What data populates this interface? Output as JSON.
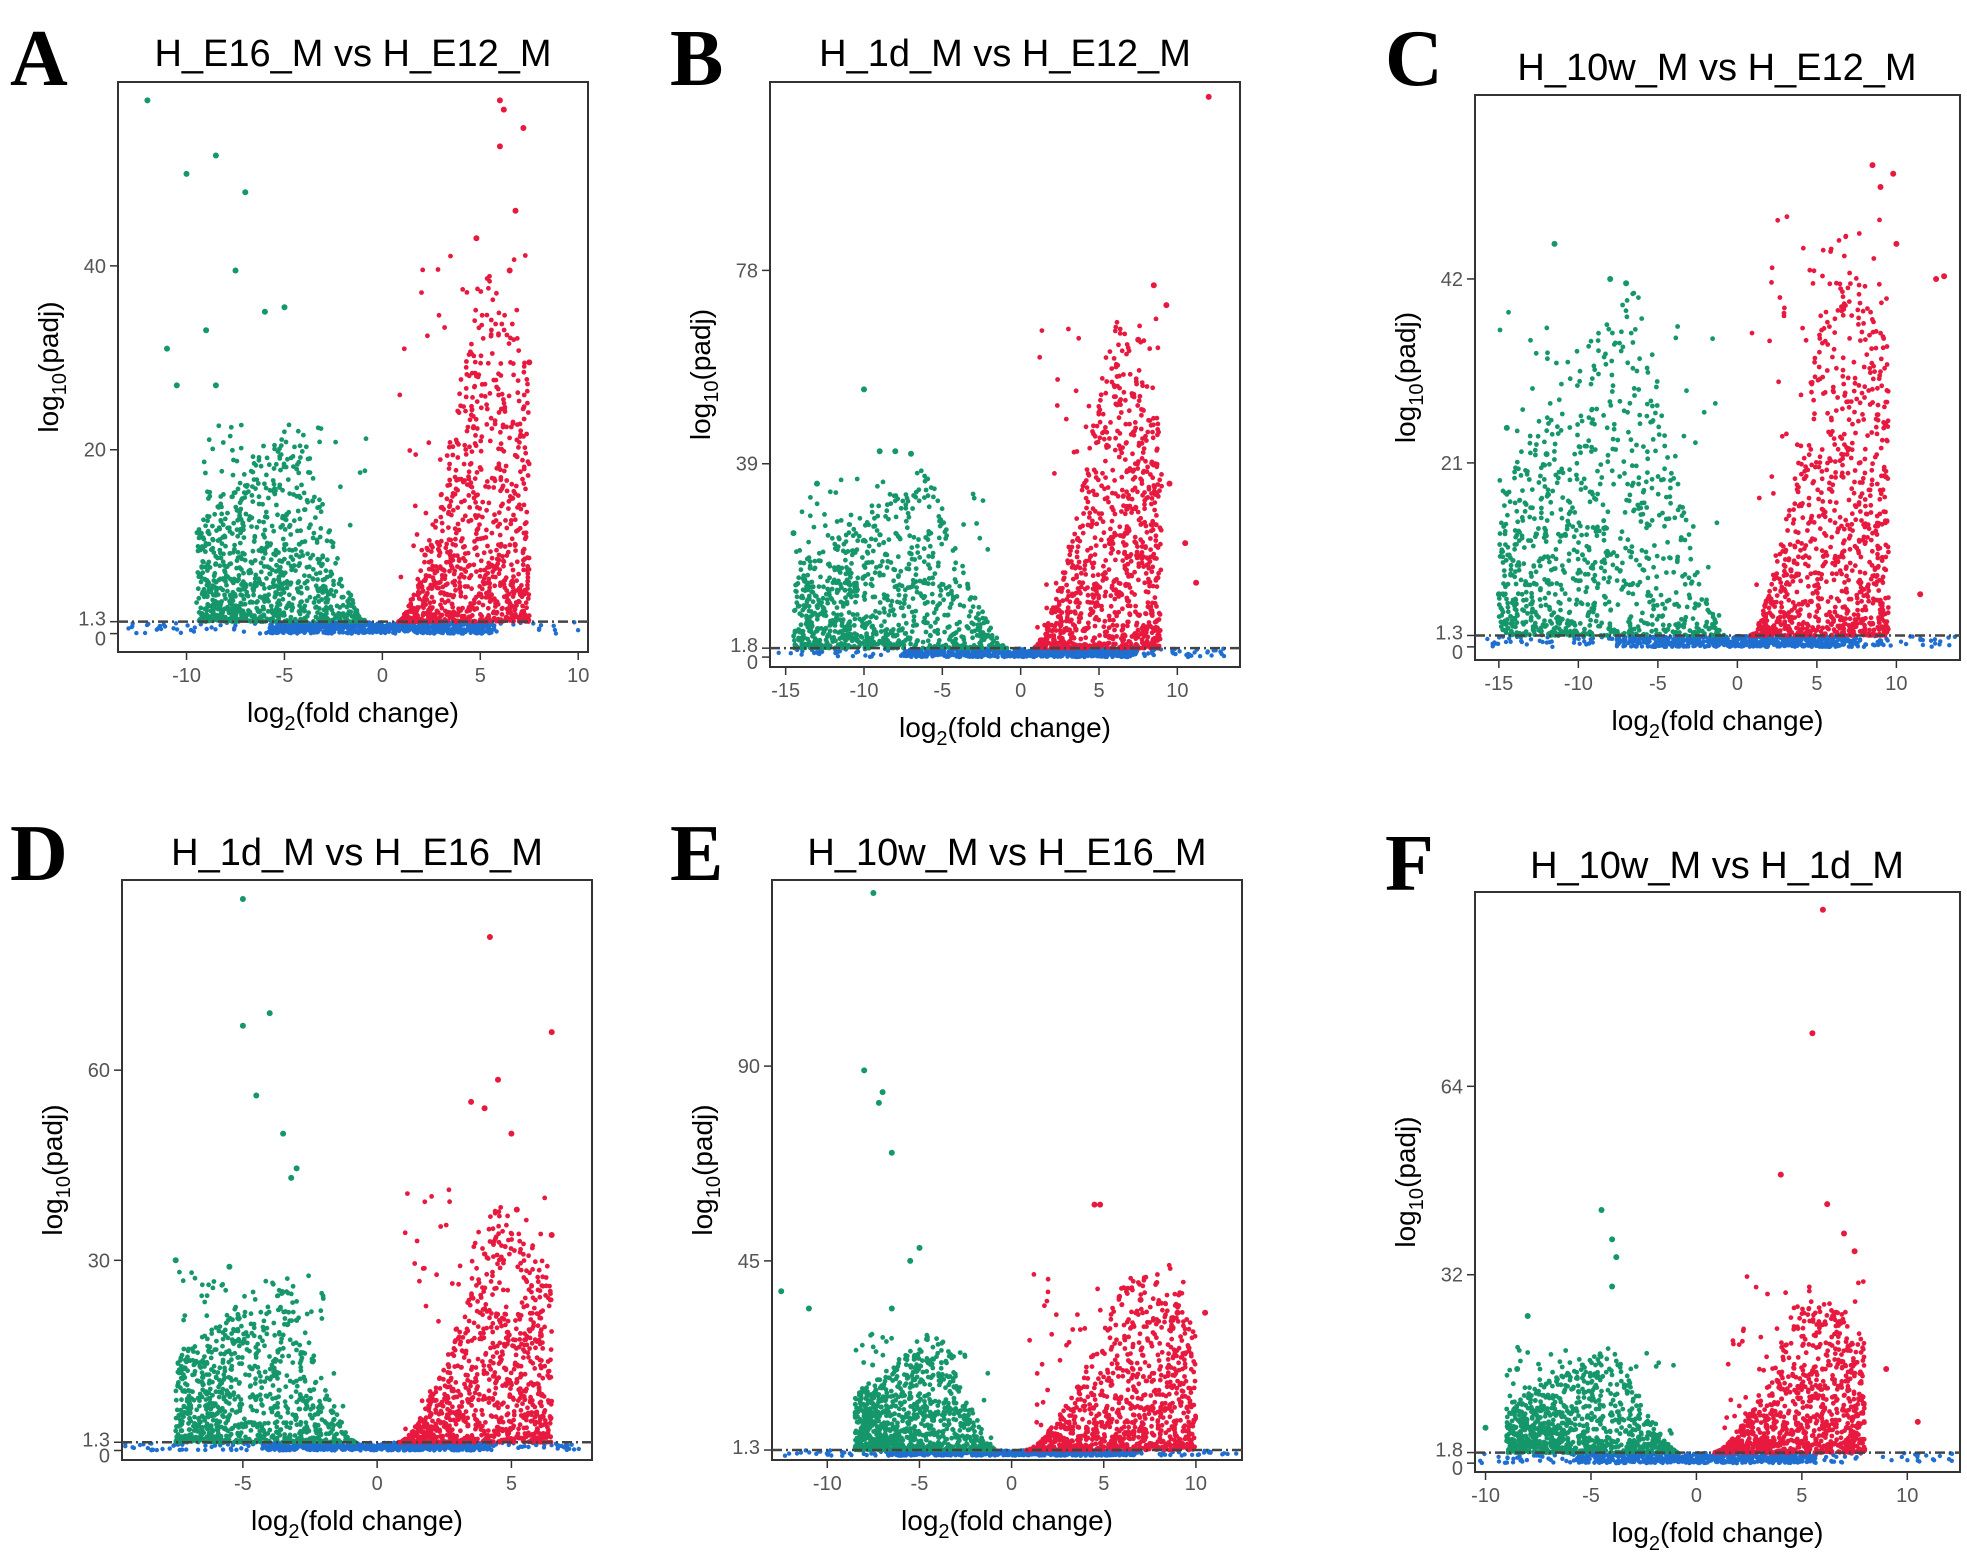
{
  "figure": {
    "colors": {
      "down": "#15966b",
      "up": "#e8193f",
      "ns": "#1f6fd1",
      "threshold": "#444444",
      "frame": "#333333"
    }
  },
  "chart_data": [
    {
      "type": "scatter",
      "letter": "A",
      "title": "H_E16_M vs H_E12_M",
      "xlabel": "log2(fold change)",
      "ylabel": "log10(padj)",
      "xlim": [
        -13.5,
        10.5
      ],
      "ylim": [
        -2,
        60
      ],
      "xticks": [
        -10,
        -5,
        0,
        5,
        10
      ],
      "yticks": [
        0,
        1.3,
        20,
        40
      ],
      "threshold": 1.3,
      "down_x_extent": -9.5,
      "down_peak": 24,
      "up_x_extent": 7.5,
      "up_peak": 40,
      "ns_x_range": [
        -13,
        10.4
      ],
      "outliers_down": [
        [
          -12,
          58
        ],
        [
          -8.5,
          52
        ],
        [
          -10,
          50
        ],
        [
          -7,
          48
        ],
        [
          -7.5,
          39.5
        ],
        [
          -6,
          35
        ],
        [
          -5,
          35.5
        ],
        [
          -9,
          33
        ],
        [
          -11,
          31
        ],
        [
          -8.5,
          27
        ],
        [
          -10.5,
          27
        ]
      ],
      "outliers_up": [
        [
          6,
          58
        ],
        [
          6.2,
          57
        ],
        [
          7.2,
          55
        ],
        [
          6,
          53
        ],
        [
          6.8,
          46
        ],
        [
          4.8,
          43
        ],
        [
          6.5,
          39.5
        ],
        [
          7.5,
          29.5
        ]
      ]
    },
    {
      "type": "scatter",
      "letter": "B",
      "title": "H_1d_M vs H_E12_M",
      "xlabel": "log2(fold change)",
      "ylabel": "log10(padj)",
      "xlim": [
        -16,
        14
      ],
      "ylim": [
        -2,
        116
      ],
      "xticks": [
        -15,
        -10,
        -5,
        0,
        5,
        10
      ],
      "yticks": [
        0,
        1.8,
        39,
        78
      ],
      "threshold": 1.8,
      "down_x_extent": -14.5,
      "down_peak": 38,
      "up_x_extent": 9,
      "up_peak": 68,
      "ns_x_range": [
        -15.5,
        13.5
      ],
      "outliers_down": [
        [
          -10,
          54
        ],
        [
          -9,
          41.5
        ],
        [
          -8,
          41.5
        ],
        [
          -7,
          41
        ],
        [
          -13,
          35
        ],
        [
          -14.5,
          25
        ]
      ],
      "outliers_up": [
        [
          12,
          113
        ],
        [
          8.5,
          75
        ],
        [
          9.3,
          71
        ],
        [
          7.5,
          64
        ],
        [
          9.5,
          35
        ],
        [
          10.5,
          23
        ],
        [
          11.2,
          15
        ]
      ]
    },
    {
      "type": "scatter",
      "letter": "C",
      "title": "H_10w_M vs H_E12_M",
      "xlabel": "log2(fold change)",
      "ylabel": "log10(padj)",
      "xlim": [
        -16.5,
        14
      ],
      "ylim": [
        -1.5,
        63
      ],
      "xticks": [
        -15,
        -10,
        -5,
        0,
        5,
        10
      ],
      "yticks": [
        0,
        1.3,
        21,
        42
      ],
      "threshold": 1.3,
      "down_x_extent": -15,
      "down_peak": 42,
      "up_x_extent": 9.5,
      "up_peak": 48,
      "ns_x_range": [
        -16,
        13.8
      ],
      "outliers_down": [
        [
          -11.5,
          46
        ],
        [
          -8,
          42
        ],
        [
          -7,
          41.5
        ],
        [
          -14.5,
          25
        ],
        [
          -12,
          22
        ],
        [
          -15,
          6
        ]
      ],
      "outliers_up": [
        [
          8.5,
          55
        ],
        [
          9.8,
          54
        ],
        [
          9,
          52.5
        ],
        [
          10,
          46
        ],
        [
          12.5,
          42
        ],
        [
          13,
          42.3
        ],
        [
          11.5,
          6
        ]
      ]
    },
    {
      "type": "scatter",
      "letter": "D",
      "title": "H_1d_M vs H_E16_M",
      "xlabel": "log2(fold change)",
      "ylabel": "log10(padj)",
      "xlim": [
        -9.5,
        8
      ],
      "ylim": [
        -1.5,
        90
      ],
      "xticks": [
        -5,
        0,
        5
      ],
      "yticks": [
        0,
        1.3,
        30,
        60
      ],
      "threshold": 1.3,
      "down_x_extent": -7.5,
      "down_peak": 30,
      "up_x_extent": 6.5,
      "up_peak": 40,
      "ns_x_range": [
        -9.5,
        7.8
      ],
      "outliers_down": [
        [
          -5,
          87
        ],
        [
          -4,
          69
        ],
        [
          -5,
          67
        ],
        [
          -4.5,
          56
        ],
        [
          -3.5,
          50
        ],
        [
          -3,
          44.5
        ],
        [
          -3.2,
          43
        ],
        [
          -7.5,
          30
        ],
        [
          -5.5,
          29
        ]
      ],
      "outliers_up": [
        [
          4.2,
          81
        ],
        [
          6.5,
          66
        ],
        [
          4.5,
          58.5
        ],
        [
          4,
          54
        ],
        [
          3.5,
          55
        ],
        [
          5,
          50
        ],
        [
          5.2,
          38
        ],
        [
          6.5,
          34
        ]
      ]
    },
    {
      "type": "scatter",
      "letter": "E",
      "title": "H_10w_M vs H_E16_M",
      "xlabel": "log2(fold change)",
      "ylabel": "log10(padj)",
      "xlim": [
        -13,
        12.5
      ],
      "ylim": [
        -1,
        133
      ],
      "xticks": [
        -10,
        -5,
        0,
        5,
        10
      ],
      "yticks": [
        1.3,
        45,
        90
      ],
      "threshold": 1.3,
      "down_x_extent": -8.5,
      "down_peak": 30,
      "up_x_extent": 10,
      "up_peak": 44,
      "ns_x_range": [
        -12.5,
        12.2
      ],
      "outliers_down": [
        [
          -7.5,
          130
        ],
        [
          -8,
          89
        ],
        [
          -7,
          84
        ],
        [
          -7.2,
          81.5
        ],
        [
          -6.5,
          70
        ],
        [
          -5,
          48
        ],
        [
          -5.5,
          45
        ],
        [
          -12.5,
          38
        ],
        [
          -11,
          34
        ],
        [
          -6.5,
          34
        ]
      ],
      "outliers_up": [
        [
          4.5,
          58
        ],
        [
          4.8,
          58
        ],
        [
          7,
          36
        ],
        [
          9,
          33
        ],
        [
          10.5,
          33
        ]
      ]
    },
    {
      "type": "scatter",
      "letter": "F",
      "title": "H_10w_M vs H_1d_M",
      "xlabel": "log2(fold change)",
      "ylabel": "log10(padj)",
      "xlim": [
        -10.5,
        12.5
      ],
      "ylim": [
        -1.5,
        97
      ],
      "xticks": [
        -10,
        -5,
        0,
        5,
        10
      ],
      "yticks": [
        0,
        1.8,
        32,
        64
      ],
      "threshold": 1.8,
      "down_x_extent": -9,
      "down_peak": 20,
      "up_x_extent": 8,
      "up_peak": 30,
      "ns_x_range": [
        -10.3,
        12.3
      ],
      "outliers_down": [
        [
          -4.5,
          43
        ],
        [
          -4,
          38
        ],
        [
          -3.8,
          35
        ],
        [
          -4,
          30
        ],
        [
          -8,
          25
        ],
        [
          -8.5,
          16
        ],
        [
          -10,
          6
        ]
      ],
      "outliers_up": [
        [
          6,
          94
        ],
        [
          5.5,
          73
        ],
        [
          6.2,
          44
        ],
        [
          7,
          39
        ],
        [
          4,
          49
        ],
        [
          7.5,
          36
        ],
        [
          9,
          16
        ],
        [
          10.5,
          7
        ]
      ]
    }
  ]
}
